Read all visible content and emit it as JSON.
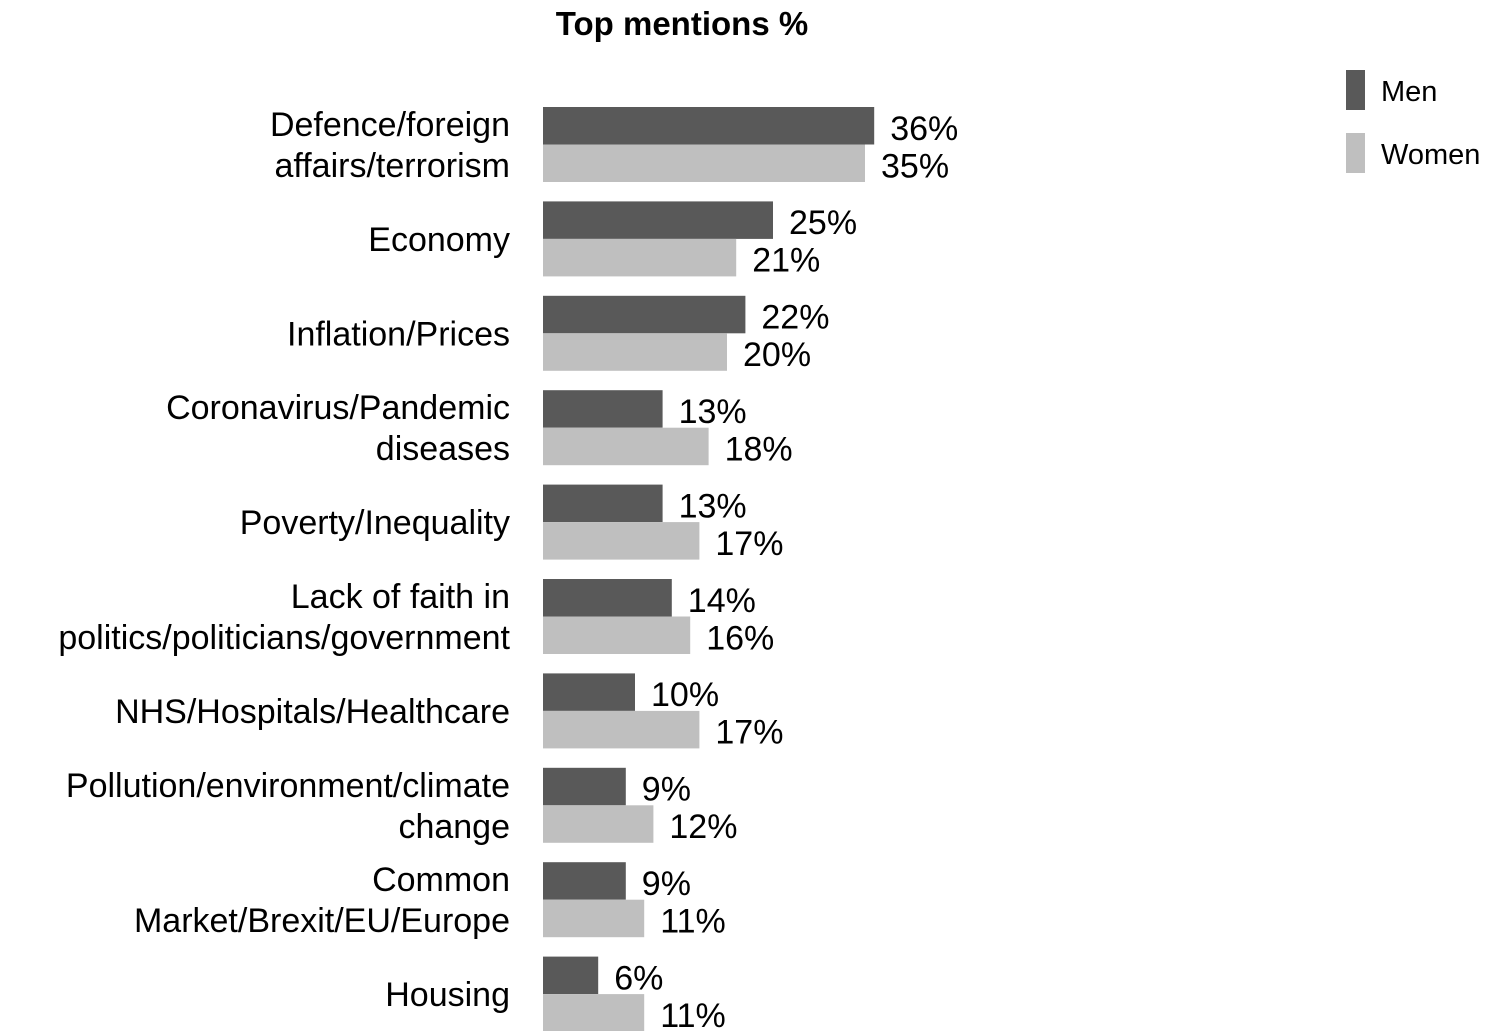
{
  "chart_data": {
    "type": "bar",
    "orientation": "horizontal",
    "title": "Top mentions %",
    "categories": [
      [
        "Defence/foreign",
        "affairs/terrorism"
      ],
      [
        "Economy"
      ],
      [
        "Inflation/Prices"
      ],
      [
        "Coronavirus/Pandemic",
        "diseases"
      ],
      [
        "Poverty/Inequality"
      ],
      [
        "Lack of faith in",
        "politics/politicians/government"
      ],
      [
        "NHS/Hospitals/Healthcare"
      ],
      [
        "Pollution/environment/climate",
        "change"
      ],
      [
        "Common",
        "Market/Brexit/EU/Europe"
      ],
      [
        "Housing"
      ]
    ],
    "series": [
      {
        "name": "Men",
        "color": "#595959",
        "values": [
          36,
          25,
          22,
          13,
          13,
          14,
          10,
          9,
          9,
          6
        ]
      },
      {
        "name": "Women",
        "color": "#bfbfbf",
        "values": [
          35,
          21,
          20,
          18,
          17,
          16,
          17,
          12,
          11,
          11
        ]
      }
    ],
    "value_suffix": "%",
    "legend_position": "top-right",
    "grid": false,
    "xlim": [
      0,
      100
    ]
  }
}
